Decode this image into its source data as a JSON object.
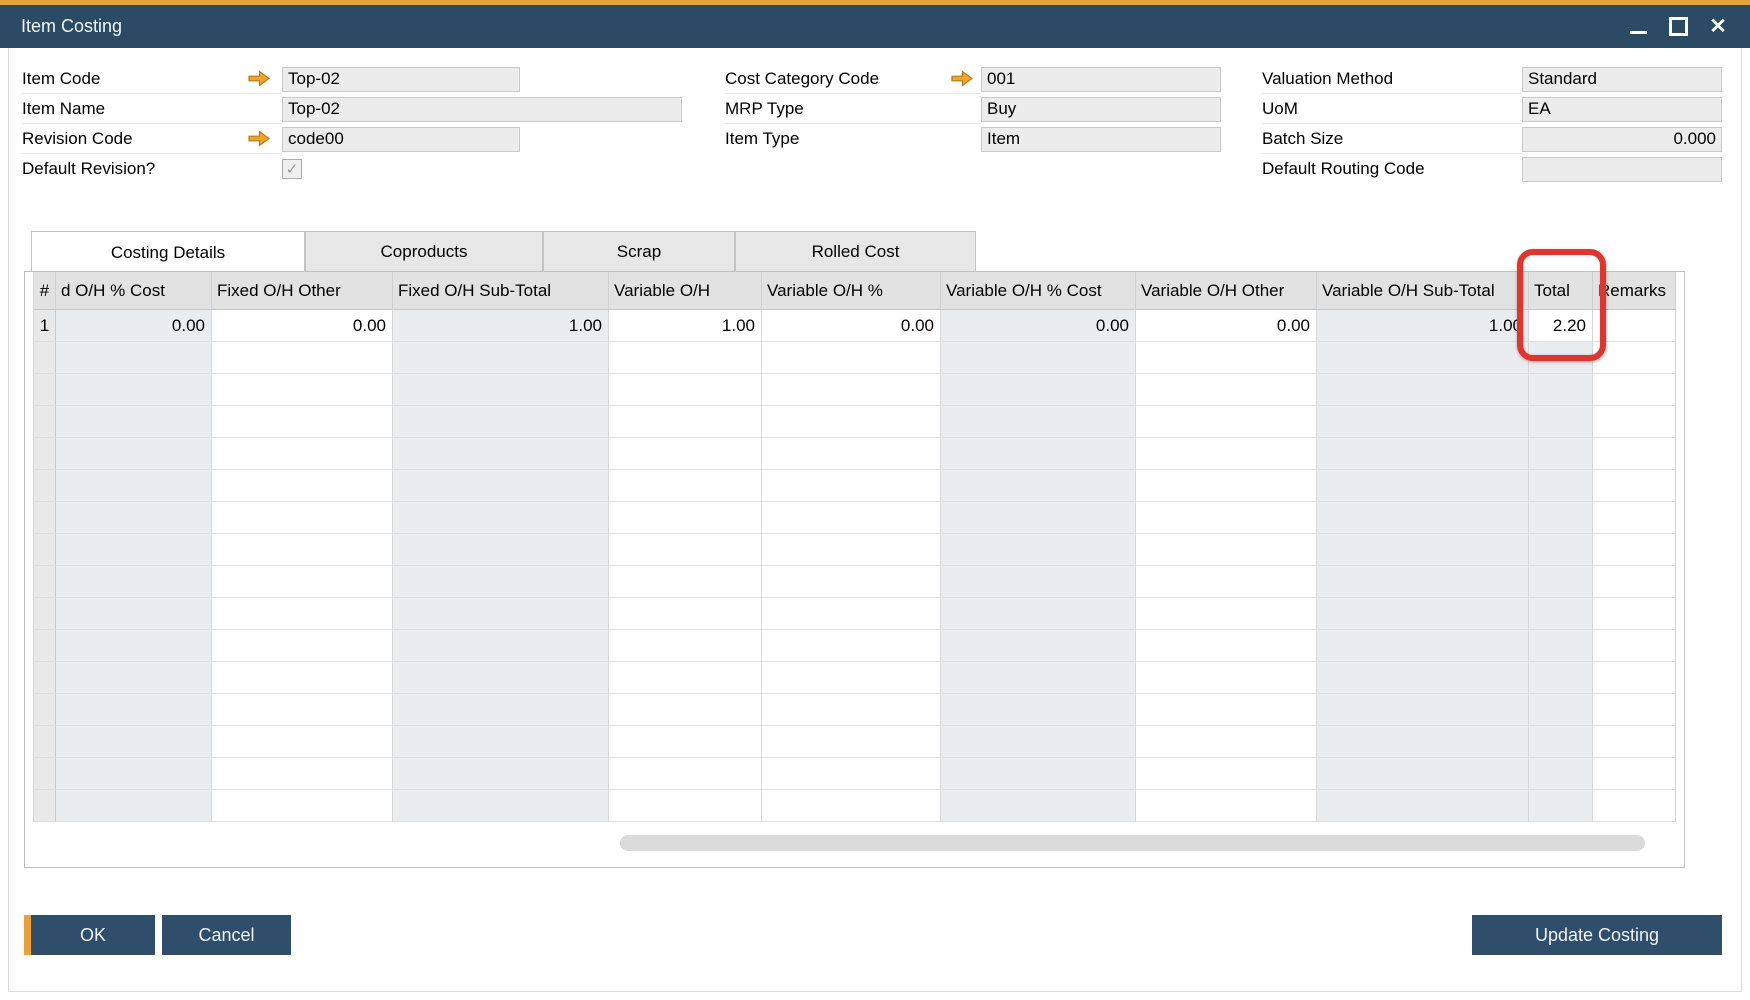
{
  "window": {
    "title": "Item Costing",
    "controls": [
      "minimize-icon",
      "maximize-icon",
      "close-icon"
    ]
  },
  "form": {
    "groups": [
      {
        "id": "g1",
        "fields": [
          {
            "id": "item-code",
            "label": "Item Code",
            "arrow": true,
            "control": "field",
            "value": "Top-02"
          },
          {
            "id": "item-name",
            "label": "Item Name",
            "arrow": false,
            "control": "field",
            "value": "Top-02",
            "wide": true
          },
          {
            "id": "revision-code",
            "label": "Revision Code",
            "arrow": true,
            "control": "field",
            "value": "code00"
          },
          {
            "id": "default-revision",
            "label": "Default Revision?",
            "arrow": false,
            "control": "checkbox",
            "checked": true
          }
        ]
      },
      {
        "id": "g2",
        "fields": [
          {
            "id": "cost-category-code",
            "label": "Cost Category Code",
            "arrow": true,
            "control": "field",
            "value": "001"
          },
          {
            "id": "mrp-type",
            "label": "MRP Type",
            "arrow": false,
            "control": "field",
            "value": "Buy"
          },
          {
            "id": "item-type",
            "label": "Item Type",
            "arrow": false,
            "control": "field",
            "value": "Item"
          }
        ]
      },
      {
        "id": "g3",
        "fields": [
          {
            "id": "valuation-method",
            "label": "Valuation Method",
            "arrow": false,
            "control": "field",
            "value": "Standard"
          },
          {
            "id": "uom",
            "label": "UoM",
            "arrow": false,
            "control": "field",
            "value": "EA"
          },
          {
            "id": "batch-size",
            "label": "Batch Size",
            "arrow": false,
            "control": "field",
            "value": "0.000",
            "align": "right"
          },
          {
            "id": "default-routing-code",
            "label": "Default Routing Code",
            "arrow": false,
            "control": "field",
            "value": ""
          }
        ]
      }
    ]
  },
  "tabs": [
    {
      "id": "costing-details",
      "label": "Costing Details",
      "active": true
    },
    {
      "id": "coproducts",
      "label": "Coproducts",
      "active": false
    },
    {
      "id": "scrap",
      "label": "Scrap",
      "active": false
    },
    {
      "id": "rolled-cost",
      "label": "Rolled Cost",
      "active": false
    }
  ],
  "table": {
    "columns": [
      "#",
      "d O/H % Cost",
      "Fixed O/H Other",
      "Fixed O/H Sub-Total",
      "Variable O/H",
      "Variable O/H %",
      "Variable O/H % Cost",
      "Variable O/H Other",
      "Variable O/H Sub-Total",
      "Total",
      "Remarks"
    ],
    "rows": [
      {
        "num": "1",
        "values": [
          "0.00",
          "0.00",
          "1.00",
          "1.00",
          "0.00",
          "0.00",
          "0.00",
          "1.00",
          "2.20",
          ""
        ]
      }
    ],
    "empty_row_count": 15
  },
  "buttons": {
    "ok": "OK",
    "cancel": "Cancel",
    "update_costing": "Update Costing"
  },
  "annotation": {
    "type": "red-highlight-box",
    "target": "Total column header and first row value 2.20"
  },
  "colors": {
    "titlebar": "#2B4A63",
    "accent_orange": "#E9A23B",
    "button_blue": "#2E4E6C",
    "annotation_red": "#DB3630",
    "shaded_cell": "#E9EDEF",
    "field_bg": "#ECECEC"
  }
}
